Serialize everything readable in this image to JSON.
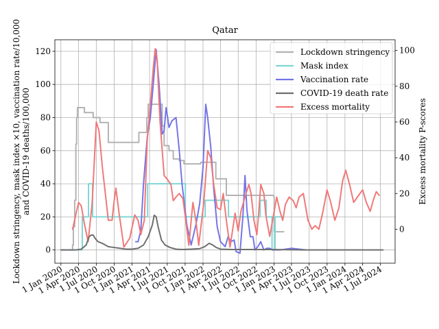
{
  "chart_data": {
    "type": "line",
    "title": "Qatar",
    "ylabel_left_line1": "Lockdown stringency, mask index ×10, vaccination rate/10,000",
    "ylabel_left_line2": "and COVID-19 deaths/100,000",
    "ylabel_right": "Excess mortality P-scores",
    "x_ticks": [
      "1 Jan 2020",
      "1 Apr 2020",
      "1 Jul 2020",
      "1 Oct 2020",
      "1 Jan 2021",
      "1 Apr 2021",
      "1 Jul 2021",
      "1 Oct 2021",
      "1 Jan 2022",
      "1 Apr 2022",
      "1 Jul 2022",
      "1 Oct 2022",
      "1 Jan 2023",
      "1 Apr 2023",
      "1 Jul 2023",
      "1 Oct 2023",
      "1 Jan 2024",
      "1 Apr 2024",
      "1 Jul 2024"
    ],
    "xlim": [
      "2019-12-01",
      "2024-09-15"
    ],
    "ylim_left": [
      -8,
      127
    ],
    "yticks_left": [
      0,
      20,
      40,
      60,
      80,
      100,
      120
    ],
    "ylim_right": [
      -19,
      106
    ],
    "yticks_right": [
      0,
      20,
      40,
      60,
      80,
      100
    ],
    "grid": true,
    "legend_position": "top-right",
    "series": [
      {
        "name": "Lockdown stringency",
        "axis": "left",
        "color": "#b3b3b3",
        "step": true,
        "points": [
          [
            "2020-01-01",
            0
          ],
          [
            "2020-02-28",
            0
          ],
          [
            "2020-03-01",
            3
          ],
          [
            "2020-03-05",
            14
          ],
          [
            "2020-03-12",
            30
          ],
          [
            "2020-03-18",
            64
          ],
          [
            "2020-03-22",
            80
          ],
          [
            "2020-03-26",
            86
          ],
          [
            "2020-04-20",
            86
          ],
          [
            "2020-05-01",
            83
          ],
          [
            "2020-06-10",
            83
          ],
          [
            "2020-06-15",
            80
          ],
          [
            "2020-07-10",
            80
          ],
          [
            "2020-07-20",
            77
          ],
          [
            "2020-08-15",
            77
          ],
          [
            "2020-09-01",
            65
          ],
          [
            "2020-12-15",
            65
          ],
          [
            "2020-12-31",
            65
          ],
          [
            "2021-02-05",
            71
          ],
          [
            "2021-03-10",
            71
          ],
          [
            "2021-03-18",
            80
          ],
          [
            "2021-03-25",
            88
          ],
          [
            "2021-06-01",
            88
          ],
          [
            "2021-06-05",
            75
          ],
          [
            "2021-06-15",
            63
          ],
          [
            "2021-07-10",
            60
          ],
          [
            "2021-08-01",
            55
          ],
          [
            "2021-09-01",
            54
          ],
          [
            "2021-09-25",
            52
          ],
          [
            "2021-12-15",
            52
          ],
          [
            "2021-12-20",
            53
          ],
          [
            "2022-03-01",
            53
          ],
          [
            "2022-03-08",
            43
          ],
          [
            "2022-04-15",
            43
          ],
          [
            "2022-05-01",
            33
          ],
          [
            "2022-12-31",
            32
          ],
          [
            "2023-01-02",
            11
          ],
          [
            "2023-02-20",
            11
          ]
        ]
      },
      {
        "name": "Mask index",
        "axis": "left",
        "color": "#7fd6d6",
        "step": true,
        "points": [
          [
            "2020-01-01",
            0
          ],
          [
            "2020-04-15",
            0
          ],
          [
            "2020-04-20",
            20
          ],
          [
            "2020-05-20",
            20
          ],
          [
            "2020-05-22",
            40
          ],
          [
            "2020-06-10",
            40
          ],
          [
            "2020-06-12",
            20
          ],
          [
            "2021-03-20",
            20
          ],
          [
            "2021-03-22",
            40
          ],
          [
            "2021-09-30",
            40
          ],
          [
            "2021-10-02",
            20
          ],
          [
            "2022-01-10",
            20
          ],
          [
            "2022-01-12",
            30
          ],
          [
            "2022-05-10",
            30
          ],
          [
            "2022-05-12",
            20
          ],
          [
            "2022-10-20",
            20
          ],
          [
            "2022-10-22",
            30
          ],
          [
            "2022-11-20",
            30
          ],
          [
            "2022-11-22",
            20
          ],
          [
            "2022-12-20",
            20
          ],
          [
            "2022-12-22",
            0
          ],
          [
            "2023-01-05",
            0
          ],
          [
            "2023-01-07",
            20
          ],
          [
            "2023-02-20",
            20
          ]
        ]
      },
      {
        "name": "Vaccination rate",
        "axis": "left",
        "color": "#7474e8",
        "step": false,
        "points": [
          [
            "2021-01-20",
            5
          ],
          [
            "2021-02-01",
            5
          ],
          [
            "2021-02-15",
            12
          ],
          [
            "2021-03-01",
            40
          ],
          [
            "2021-03-20",
            68
          ],
          [
            "2021-04-05",
            80
          ],
          [
            "2021-04-20",
            100
          ],
          [
            "2021-05-05",
            121
          ],
          [
            "2021-05-20",
            100
          ],
          [
            "2021-06-05",
            70
          ],
          [
            "2021-06-15",
            72
          ],
          [
            "2021-06-25",
            86
          ],
          [
            "2021-07-03",
            80
          ],
          [
            "2021-07-10",
            74
          ],
          [
            "2021-07-25",
            78
          ],
          [
            "2021-08-15",
            80
          ],
          [
            "2021-09-01",
            60
          ],
          [
            "2021-09-15",
            40
          ],
          [
            "2021-09-25",
            30
          ],
          [
            "2021-10-10",
            15
          ],
          [
            "2021-11-01",
            3
          ],
          [
            "2021-11-25",
            15
          ],
          [
            "2021-12-15",
            28
          ],
          [
            "2022-01-01",
            50
          ],
          [
            "2022-01-15",
            88
          ],
          [
            "2022-01-25",
            80
          ],
          [
            "2022-02-10",
            62
          ],
          [
            "2022-02-25",
            37
          ],
          [
            "2022-03-15",
            14
          ],
          [
            "2022-04-01",
            5
          ],
          [
            "2022-04-25",
            2
          ],
          [
            "2022-05-10",
            8
          ],
          [
            "2022-05-25",
            5
          ],
          [
            "2022-06-10",
            6
          ],
          [
            "2022-06-20",
            -1
          ],
          [
            "2022-07-10",
            -2
          ],
          [
            "2022-07-25",
            20
          ],
          [
            "2022-08-05",
            45
          ],
          [
            "2022-08-15",
            24
          ],
          [
            "2022-09-01",
            8
          ],
          [
            "2022-09-15",
            8
          ],
          [
            "2022-09-25",
            0
          ],
          [
            "2022-10-10",
            2
          ],
          [
            "2022-10-25",
            5
          ],
          [
            "2022-11-10",
            0
          ],
          [
            "2022-11-25",
            1
          ],
          [
            "2022-12-10",
            1
          ],
          [
            "2022-12-25",
            0
          ],
          [
            "2023-02-01",
            0
          ],
          [
            "2023-04-01",
            1
          ],
          [
            "2023-06-15",
            0
          ]
        ]
      },
      {
        "name": "COVID-19 death rate",
        "axis": "left",
        "color": "#6e6e6e",
        "step": false,
        "points": [
          [
            "2020-01-01",
            0
          ],
          [
            "2020-03-15",
            0
          ],
          [
            "2020-04-15",
            0.5
          ],
          [
            "2020-05-10",
            3
          ],
          [
            "2020-05-25",
            8
          ],
          [
            "2020-06-05",
            9
          ],
          [
            "2020-06-15",
            9
          ],
          [
            "2020-06-25",
            7
          ],
          [
            "2020-07-10",
            5
          ],
          [
            "2020-08-01",
            4
          ],
          [
            "2020-09-01",
            2
          ],
          [
            "2020-10-01",
            1.5
          ],
          [
            "2020-11-01",
            1
          ],
          [
            "2020-12-01",
            0.5
          ],
          [
            "2021-01-01",
            0.5
          ],
          [
            "2021-02-01",
            1
          ],
          [
            "2021-03-01",
            3
          ],
          [
            "2021-03-25",
            8
          ],
          [
            "2021-04-15",
            15
          ],
          [
            "2021-04-25",
            21
          ],
          [
            "2021-05-05",
            20
          ],
          [
            "2021-05-15",
            14
          ],
          [
            "2021-06-01",
            6
          ],
          [
            "2021-06-20",
            3
          ],
          [
            "2021-07-15",
            1.5
          ],
          [
            "2021-08-15",
            0.5
          ],
          [
            "2021-09-15",
            0.3
          ],
          [
            "2021-11-01",
            0.5
          ],
          [
            "2021-12-15",
            0.8
          ],
          [
            "2022-01-10",
            2
          ],
          [
            "2022-02-01",
            4
          ],
          [
            "2022-02-20",
            3
          ],
          [
            "2022-03-10",
            1.5
          ],
          [
            "2022-04-01",
            0.5
          ],
          [
            "2022-06-01",
            0.3
          ],
          [
            "2022-09-01",
            0.3
          ],
          [
            "2022-12-01",
            0.3
          ],
          [
            "2023-03-01",
            0.2
          ],
          [
            "2023-06-01",
            0
          ],
          [
            "2024-07-15",
            0
          ]
        ]
      },
      {
        "name": "Excess mortality",
        "axis": "right",
        "color": "#f07878",
        "step": false,
        "points": [
          [
            "2020-03-01",
            0
          ],
          [
            "2020-04-01",
            15
          ],
          [
            "2020-04-15",
            13
          ],
          [
            "2020-05-01",
            3
          ],
          [
            "2020-05-20",
            -7
          ],
          [
            "2020-06-10",
            15
          ],
          [
            "2020-07-01",
            60
          ],
          [
            "2020-07-15",
            55
          ],
          [
            "2020-08-01",
            35
          ],
          [
            "2020-09-01",
            5
          ],
          [
            "2020-09-20",
            5
          ],
          [
            "2020-10-01",
            16
          ],
          [
            "2020-10-10",
            23
          ],
          [
            "2020-10-25",
            10
          ],
          [
            "2020-11-20",
            -10
          ],
          [
            "2020-12-20",
            -5
          ],
          [
            "2021-01-15",
            8
          ],
          [
            "2021-02-01",
            5
          ],
          [
            "2021-02-15",
            -3
          ],
          [
            "2021-03-05",
            5
          ],
          [
            "2021-03-20",
            50
          ],
          [
            "2021-04-05",
            70
          ],
          [
            "2021-04-20",
            90
          ],
          [
            "2021-04-30",
            101
          ],
          [
            "2021-05-10",
            95
          ],
          [
            "2021-05-25",
            60
          ],
          [
            "2021-06-15",
            30
          ],
          [
            "2021-07-01",
            28
          ],
          [
            "2021-07-20",
            25
          ],
          [
            "2021-08-01",
            16
          ],
          [
            "2021-08-15",
            18
          ],
          [
            "2021-09-01",
            20
          ],
          [
            "2021-09-20",
            17
          ],
          [
            "2021-10-10",
            0
          ],
          [
            "2021-10-20",
            -9
          ],
          [
            "2021-11-10",
            15
          ],
          [
            "2021-11-25",
            5
          ],
          [
            "2021-12-10",
            -9
          ],
          [
            "2022-01-05",
            15
          ],
          [
            "2022-01-25",
            44
          ],
          [
            "2022-02-10",
            40
          ],
          [
            "2022-02-25",
            25
          ],
          [
            "2022-03-15",
            12
          ],
          [
            "2022-04-01",
            11
          ],
          [
            "2022-04-15",
            20
          ],
          [
            "2022-05-01",
            5
          ],
          [
            "2022-05-20",
            -10
          ],
          [
            "2022-06-15",
            9
          ],
          [
            "2022-07-01",
            -1
          ],
          [
            "2022-07-15",
            10
          ],
          [
            "2022-08-10",
            20
          ],
          [
            "2022-08-25",
            25
          ],
          [
            "2022-09-05",
            20
          ],
          [
            "2022-09-20",
            5
          ],
          [
            "2022-10-05",
            -3
          ],
          [
            "2022-10-15",
            10
          ],
          [
            "2022-10-25",
            25
          ],
          [
            "2022-11-10",
            20
          ],
          [
            "2022-11-20",
            8
          ],
          [
            "2022-12-10",
            -4
          ],
          [
            "2022-12-25",
            5
          ],
          [
            "2023-01-15",
            18
          ],
          [
            "2023-02-01",
            10
          ],
          [
            "2023-02-15",
            5
          ],
          [
            "2023-03-01",
            14
          ],
          [
            "2023-03-20",
            18
          ],
          [
            "2023-04-10",
            16
          ],
          [
            "2023-04-25",
            12
          ],
          [
            "2023-05-10",
            18
          ],
          [
            "2023-06-01",
            20
          ],
          [
            "2023-06-25",
            5
          ],
          [
            "2023-07-15",
            0
          ],
          [
            "2023-08-01",
            2
          ],
          [
            "2023-08-20",
            0
          ],
          [
            "2023-09-10",
            10
          ],
          [
            "2023-10-01",
            22
          ],
          [
            "2023-10-20",
            15
          ],
          [
            "2023-11-10",
            5
          ],
          [
            "2023-12-01",
            12
          ],
          [
            "2023-12-20",
            27
          ],
          [
            "2024-01-05",
            33
          ],
          [
            "2024-01-25",
            25
          ],
          [
            "2024-02-15",
            15
          ],
          [
            "2024-03-05",
            18
          ],
          [
            "2024-04-01",
            22
          ],
          [
            "2024-04-20",
            15
          ],
          [
            "2024-05-10",
            10
          ],
          [
            "2024-05-25",
            16
          ],
          [
            "2024-06-10",
            21
          ],
          [
            "2024-06-25",
            19
          ]
        ]
      }
    ]
  }
}
